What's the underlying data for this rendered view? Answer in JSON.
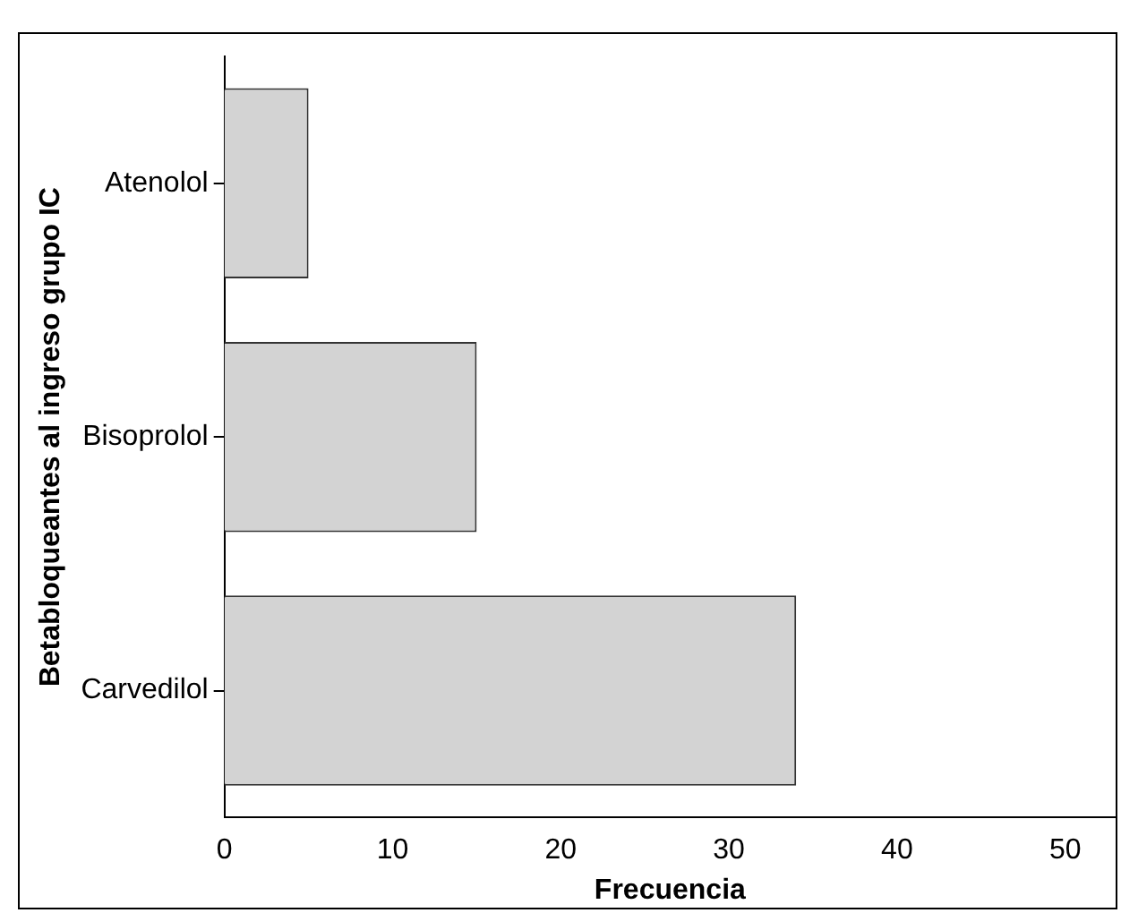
{
  "chart_data": {
    "type": "bar",
    "orientation": "horizontal",
    "xlabel": "Frecuencia",
    "ylabel": "Betabloqueantes al ingreso grupo IC",
    "categories": [
      "Atenolol",
      "Bisoprolol",
      "Carvedilol"
    ],
    "values": [
      5,
      15,
      34
    ],
    "color": "#d3d3d3",
    "xlim": [
      0,
      53
    ],
    "xticks": [
      0,
      10,
      20,
      30,
      40,
      50
    ],
    "grid": false,
    "legend": false
  }
}
